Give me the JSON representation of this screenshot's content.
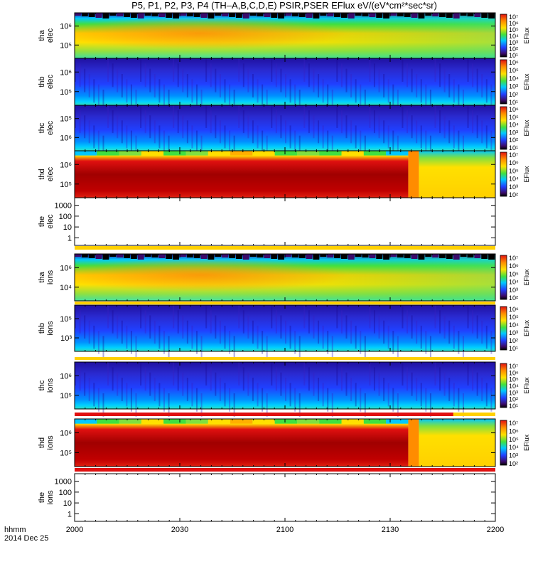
{
  "chart_data": {
    "type": "heatmap",
    "title": "P5, P1, P2, P3, P4 (TH–A,B,C,D,E) PSIR,PSER EFlux eV/(eV*cm²*sec*sr)",
    "colorbar_label": "EFlux",
    "xlabel": "hhmm",
    "date_label": "2014 Dec 25",
    "x_ticks": [
      "2000",
      "2030",
      "2100",
      "2130",
      "2200"
    ],
    "panels": [
      {
        "id": "tha-elec",
        "label": [
          "tha",
          "elec"
        ],
        "yticks": [
          "10⁶",
          "10⁵"
        ],
        "cbar": [
          "10⁷",
          "10⁶",
          "10⁵",
          "10⁴",
          "10³",
          "10²",
          "10¹"
        ],
        "style": "tha"
      },
      {
        "id": "thb-elec",
        "label": [
          "thb",
          "elec"
        ],
        "yticks": [
          "10⁶",
          "10⁵"
        ],
        "cbar": [
          "10⁶",
          "10⁵",
          "10⁴",
          "10³",
          "10²",
          "10¹"
        ],
        "style": "blue"
      },
      {
        "id": "thc-elec",
        "label": [
          "thc",
          "elec"
        ],
        "yticks": [
          "10⁵",
          "10⁶"
        ],
        "cbar": [
          "10⁶",
          "10⁵",
          "10⁴",
          "10³",
          "10²",
          "10¹"
        ],
        "style": "blue"
      },
      {
        "id": "thd-elec",
        "label": [
          "thd",
          "elec"
        ],
        "yticks": [
          "10⁶",
          "10⁵"
        ],
        "cbar": [
          "10⁷",
          "10⁶",
          "10⁵",
          "10⁴",
          "10³",
          "10²"
        ],
        "style": "thd"
      },
      {
        "id": "the-elec",
        "label": [
          "the",
          "elec"
        ],
        "yticks": [
          "1000",
          "100",
          "10",
          "1"
        ],
        "cbar": [],
        "style": "empty"
      },
      {
        "id": "tha-ions",
        "label": [
          "tha",
          "ions"
        ],
        "yticks": [
          "10⁶",
          "10⁴"
        ],
        "cbar": [
          "10⁷",
          "10⁶",
          "10⁵",
          "10⁴",
          "10³",
          "10²"
        ],
        "style": "tha"
      },
      {
        "id": "thb-ions",
        "label": [
          "thb",
          "ions"
        ],
        "yticks": [
          "10⁵",
          "10³"
        ],
        "cbar": [
          "10⁶",
          "10⁵",
          "10⁴",
          "10³",
          "10²",
          "10¹"
        ],
        "style": "blue"
      },
      {
        "id": "thc-ions",
        "label": [
          "thc",
          "ions"
        ],
        "yticks": [
          "10⁶",
          "10⁵"
        ],
        "cbar": [
          "10⁷",
          "10⁶",
          "10⁵",
          "10⁴",
          "10³",
          "10²",
          "10¹"
        ],
        "style": "blue"
      },
      {
        "id": "thd-ions",
        "label": [
          "thd",
          "ions"
        ],
        "yticks": [
          "10⁶",
          "10⁵"
        ],
        "cbar": [
          "10⁷",
          "10⁶",
          "10⁵",
          "10⁴",
          "10³",
          "10²"
        ],
        "style": "thd"
      },
      {
        "id": "the-ions",
        "label": [
          "the",
          "ions"
        ],
        "yticks": [
          "1000",
          "100",
          "10",
          "1"
        ],
        "cbar": [],
        "style": "empty"
      }
    ],
    "colors": {
      "dark_red": "#a00000",
      "red": "#e01010",
      "orange": "#ff8c00",
      "yellow": "#ffe000",
      "green": "#40e040",
      "cyan": "#00c8ff",
      "blue": "#2040ff",
      "navy": "#2010a0",
      "black": "#000000"
    }
  }
}
